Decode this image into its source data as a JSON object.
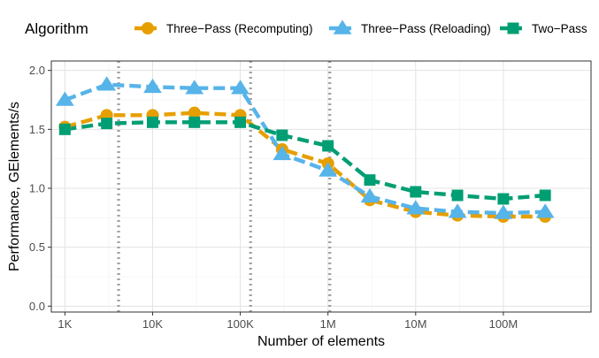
{
  "chart_data": {
    "type": "line",
    "title": "",
    "xlabel": "Number of elements",
    "ylabel": "Performance, GElements/s",
    "x_scale": "log10",
    "xlim": [
      700,
      1000000000
    ],
    "ylim": [
      -0.05,
      2.08
    ],
    "x_ticks": [
      {
        "value": 1000,
        "label": "1K"
      },
      {
        "value": 10000,
        "label": "10K"
      },
      {
        "value": 100000,
        "label": "100K"
      },
      {
        "value": 1000000,
        "label": "1M"
      },
      {
        "value": 10000000,
        "label": "10M"
      },
      {
        "value": 100000000,
        "label": "100M"
      }
    ],
    "y_ticks": [
      {
        "value": 0.0,
        "label": "0.0"
      },
      {
        "value": 0.5,
        "label": "0.5"
      },
      {
        "value": 1.0,
        "label": "1.0"
      },
      {
        "value": 1.5,
        "label": "1.5"
      },
      {
        "value": 2.0,
        "label": "2.0"
      }
    ],
    "vlines": [
      4096,
      131072,
      1048576
    ],
    "grid": true,
    "legend": {
      "title": "Algorithm",
      "position": "top"
    },
    "x": [
      1000,
      3000,
      10000,
      30000,
      100000,
      300000,
      1000000,
      3000000,
      10000000,
      30000000,
      100000000,
      300000000
    ],
    "series": [
      {
        "name": "Three−Pass (Recomputing)",
        "color": "#E69F00",
        "marker": "circle",
        "values": [
          1.52,
          1.62,
          1.62,
          1.64,
          1.62,
          1.33,
          1.21,
          0.9,
          0.8,
          0.77,
          0.76,
          0.76
        ]
      },
      {
        "name": "Three−Pass (Reloading)",
        "color": "#56B4E9",
        "marker": "triangle",
        "values": [
          1.75,
          1.88,
          1.86,
          1.85,
          1.85,
          1.29,
          1.15,
          0.93,
          0.83,
          0.8,
          0.79,
          0.8
        ]
      },
      {
        "name": "Two−Pass",
        "color": "#009E73",
        "marker": "square",
        "values": [
          1.5,
          1.55,
          1.56,
          1.56,
          1.56,
          1.45,
          1.36,
          1.07,
          0.97,
          0.94,
          0.91,
          0.94
        ]
      }
    ]
  }
}
